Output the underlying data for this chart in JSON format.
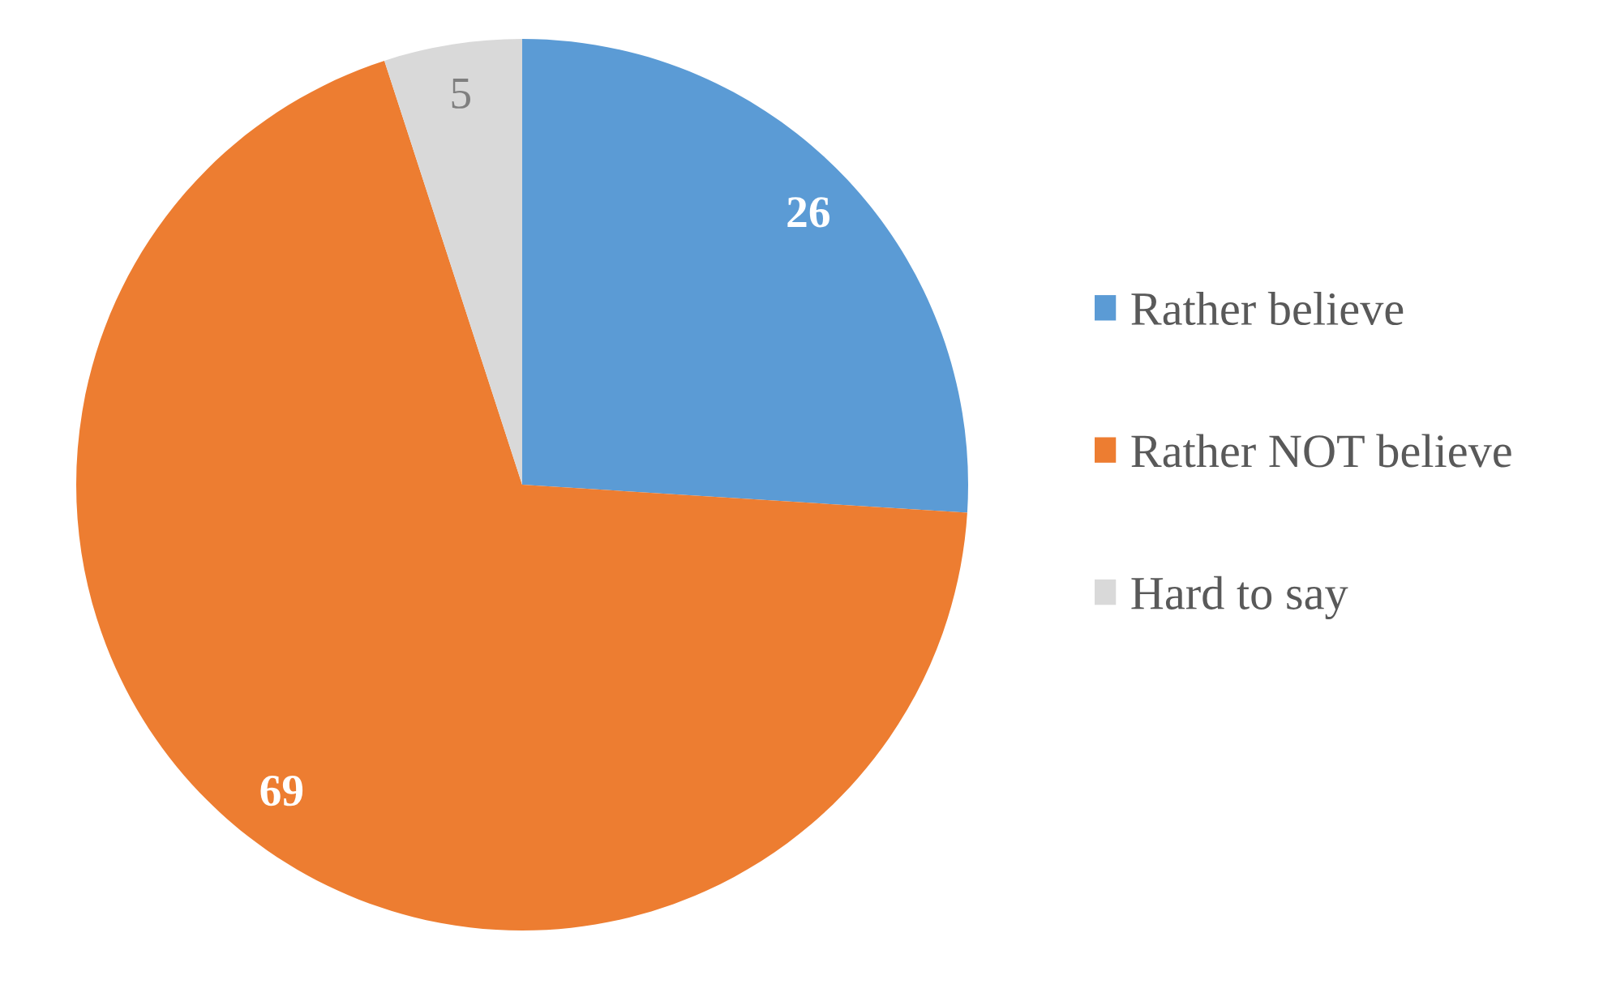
{
  "chart_data": {
    "type": "pie",
    "categories": [
      "Rather believe",
      "Rather NOT believe",
      "Hard to say"
    ],
    "values": [
      26,
      69,
      5
    ],
    "colors": [
      "#5b9bd5",
      "#ed7d31",
      "#d9d9d9"
    ],
    "data_labels": true,
    "legend": "right"
  }
}
